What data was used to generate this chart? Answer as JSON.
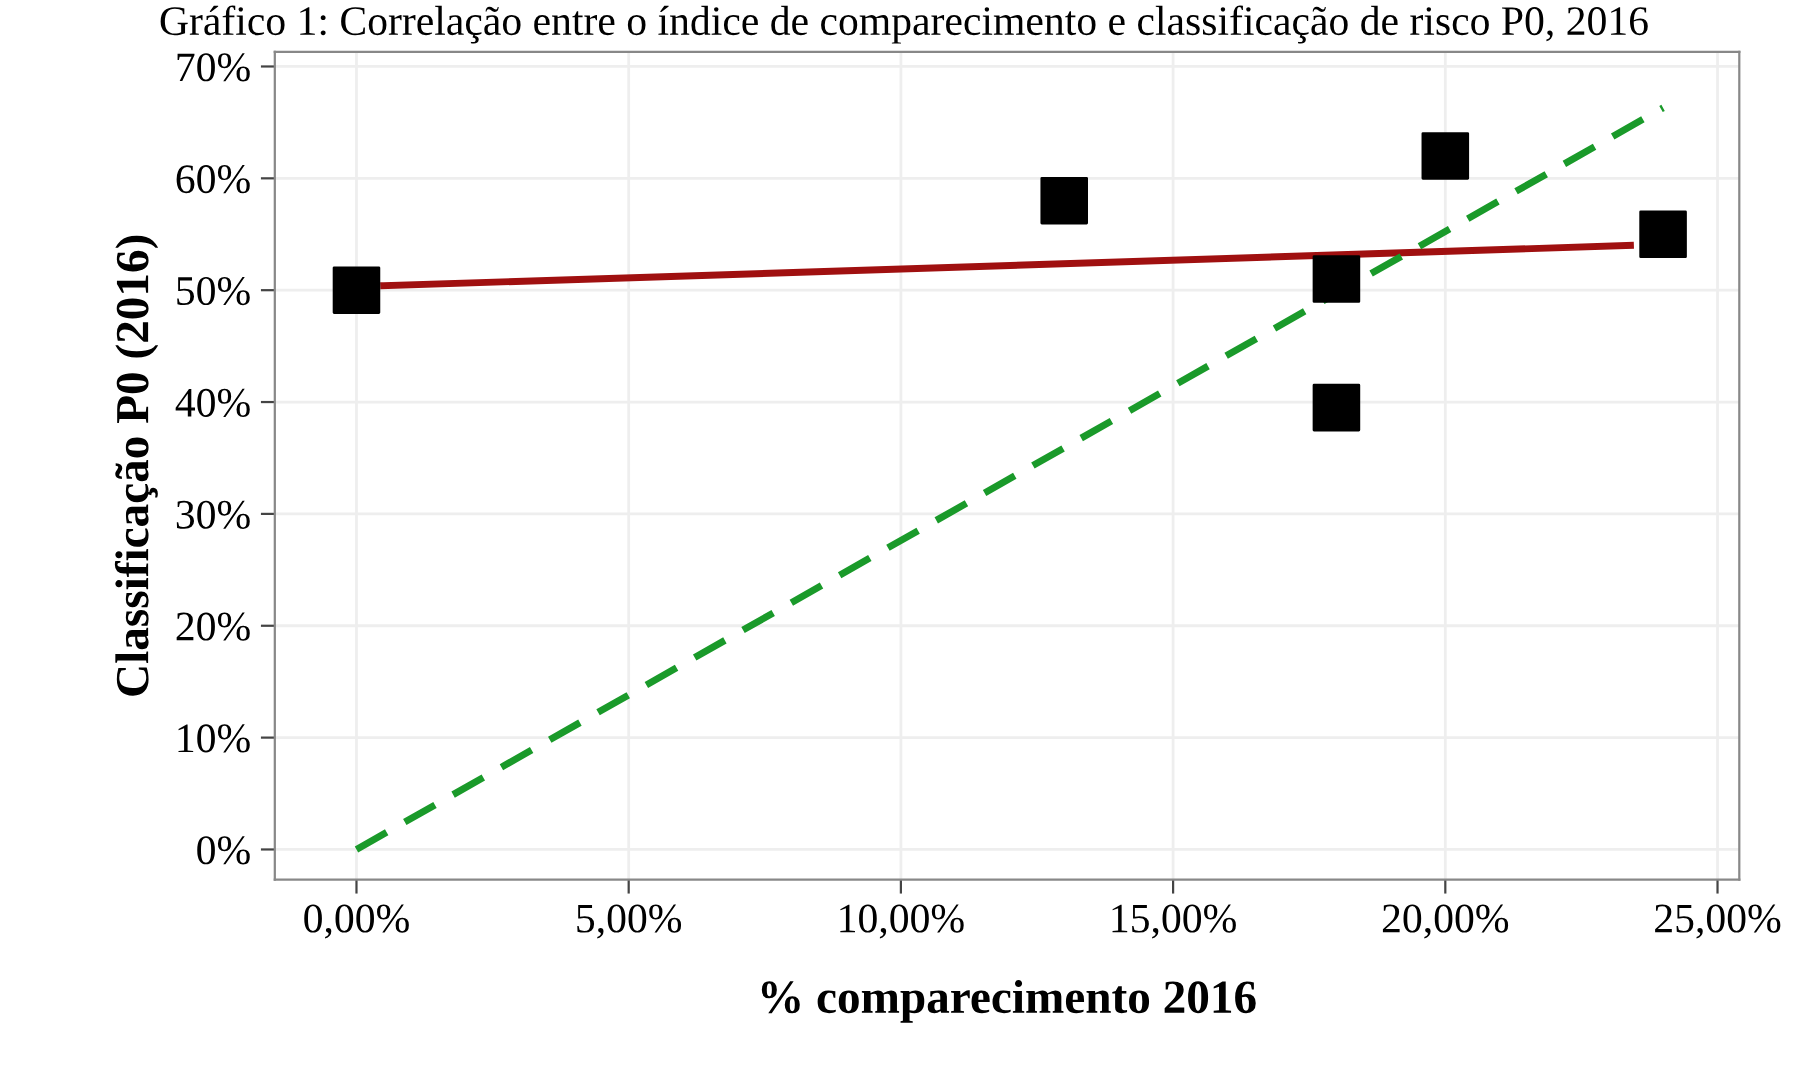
{
  "chart_data": {
    "type": "scatter",
    "title": "Gráfico 1: Correlação entre o índice de comparecimento e classificação de risco P0, 2016",
    "xlabel": "% comparecimento 2016",
    "ylabel": "Classificação P0 (2016)",
    "series": [
      {
        "color": "#000000",
        "marker": "square",
        "x": [
          0,
          13,
          18,
          18,
          20,
          24
        ],
        "values": [
          50,
          58,
          51,
          39.5,
          62,
          55
        ]
      },
      {
        "type": "line",
        "color": "#a01010",
        "line_style": "solid",
        "x": [
          0.5,
          23.4
        ],
        "values": [
          50.4,
          54
        ]
      },
      {
        "type": "line",
        "color": "#1a9a2a",
        "line_style": "dashed",
        "x": [
          0,
          24
        ],
        "values": [
          0,
          66.3
        ]
      }
    ],
    "xlim": [
      -1.5,
      25.4
    ],
    "ylim": [
      -2.7,
      71.3
    ],
    "xticks": [
      {
        "value": 0,
        "label": "0,00%"
      },
      {
        "value": 5,
        "label": "5,00%"
      },
      {
        "value": 10,
        "label": "10,00%"
      },
      {
        "value": 15,
        "label": "15,00%"
      },
      {
        "value": 20,
        "label": "20,00%"
      },
      {
        "value": 25,
        "label": "25,00%"
      }
    ],
    "yticks": [
      {
        "value": 0,
        "label": "0%"
      },
      {
        "value": 10,
        "label": "10%"
      },
      {
        "value": 20,
        "label": "20%"
      },
      {
        "value": 30,
        "label": "30%"
      },
      {
        "value": 40,
        "label": "40%"
      },
      {
        "value": 50,
        "label": "50%"
      },
      {
        "value": 60,
        "label": "60%"
      },
      {
        "value": 70,
        "label": "70%"
      }
    ],
    "grid": true,
    "legend": false
  }
}
